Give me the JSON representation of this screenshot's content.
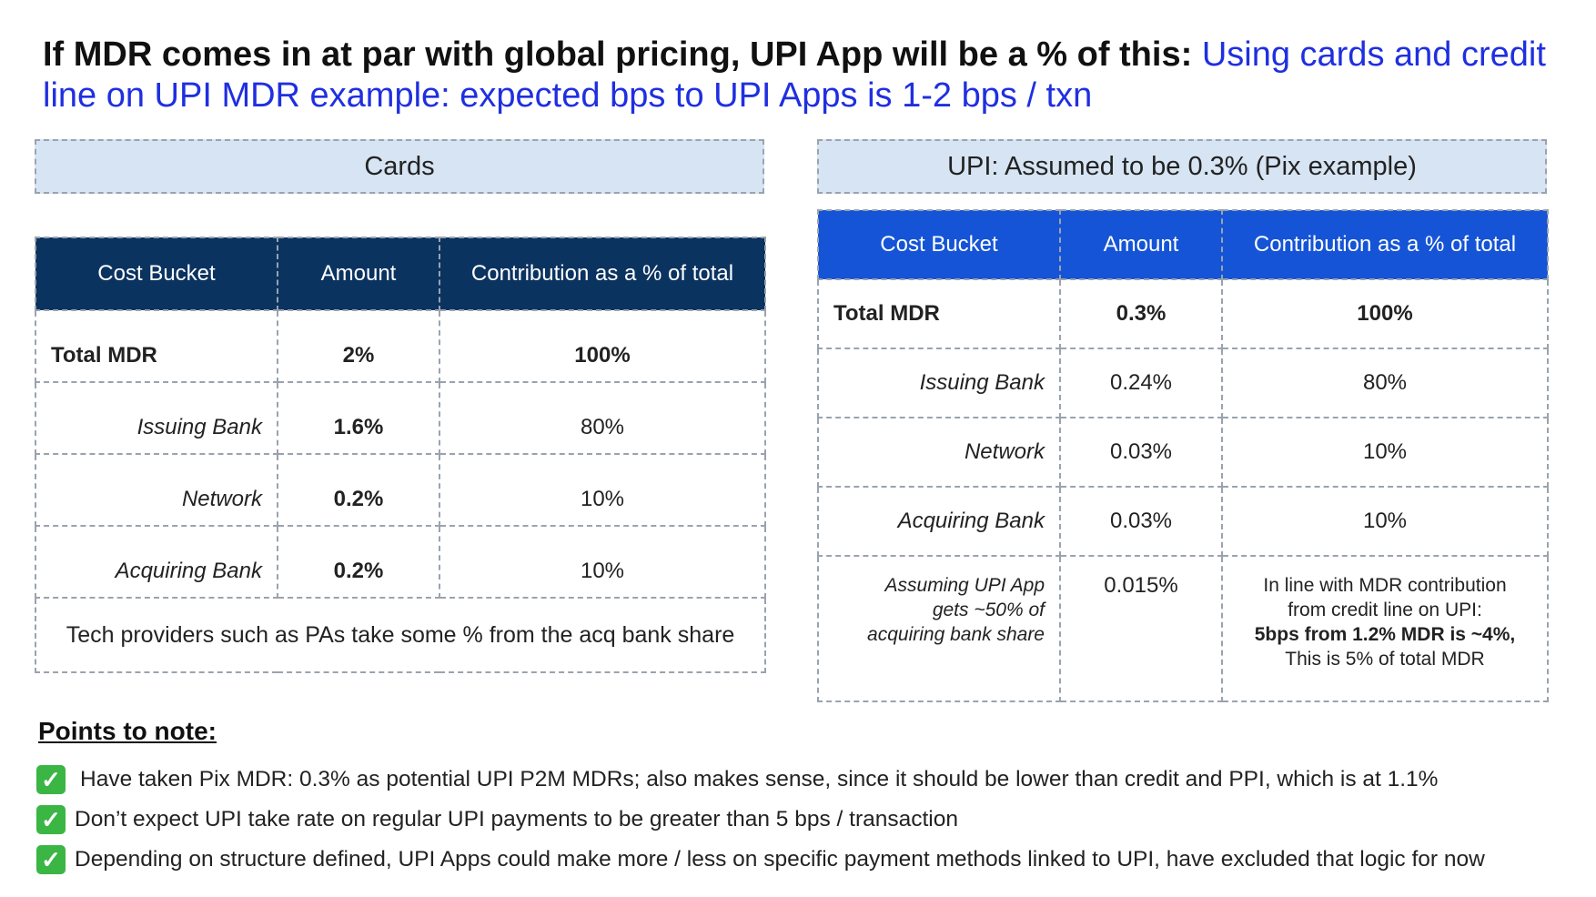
{
  "title": {
    "bold": "If MDR comes in at par with global pricing, UPI App will be a % of this:",
    "blue": "Using cards and credit line on UPI MDR example: expected bps to UPI Apps is 1-2 bps / txn"
  },
  "cards": {
    "heading": "Cards",
    "columns": [
      "Cost Bucket",
      "Amount",
      "Contribution as a % of total"
    ],
    "rows": [
      {
        "bucket": "Total MDR",
        "amount": "2%",
        "contribution": "100%"
      },
      {
        "bucket": "Issuing Bank",
        "amount": "1.6%",
        "contribution": "80%"
      },
      {
        "bucket": "Network",
        "amount": "0.2%",
        "contribution": "10%"
      },
      {
        "bucket": "Acquiring Bank",
        "amount": "0.2%",
        "contribution": "10%"
      }
    ],
    "footer": "Tech providers such as PAs take some % from the acq bank share"
  },
  "upi": {
    "heading": "UPI: Assumed to be 0.3% (Pix example)",
    "columns": [
      "Cost Bucket",
      "Amount",
      "Contribution as a % of total"
    ],
    "rows": [
      {
        "bucket": "Total MDR",
        "amount": "0.3%",
        "contribution": "100%"
      },
      {
        "bucket": "Issuing Bank",
        "amount": "0.24%",
        "contribution": "80%"
      },
      {
        "bucket": "Network",
        "amount": "0.03%",
        "contribution": "10%"
      },
      {
        "bucket": "Acquiring Bank",
        "amount": "0.03%",
        "contribution": "10%"
      }
    ],
    "extra": {
      "bucket_lines": [
        "Assuming UPI App",
        "gets ~50% of",
        "acquiring bank share"
      ],
      "amount": "0.015%",
      "note_lines": [
        "In line with MDR contribution",
        "from credit line on UPI:"
      ],
      "note_bold": "5bps from 1.2% MDR is ~4%,",
      "note_last": "This is 5% of total MDR"
    }
  },
  "points": {
    "title": "Points to note:",
    "items": [
      "Have taken Pix MDR: 0.3% as potential UPI P2M MDRs; also makes sense, since it should be lower than credit and PPI, which is at 1.1%",
      "Don’t expect UPI take rate on regular UPI payments to be greater than 5 bps / transaction",
      "Depending on structure defined, UPI Apps could make more / less on specific payment methods linked to UPI, have excluded that logic for now"
    ]
  }
}
